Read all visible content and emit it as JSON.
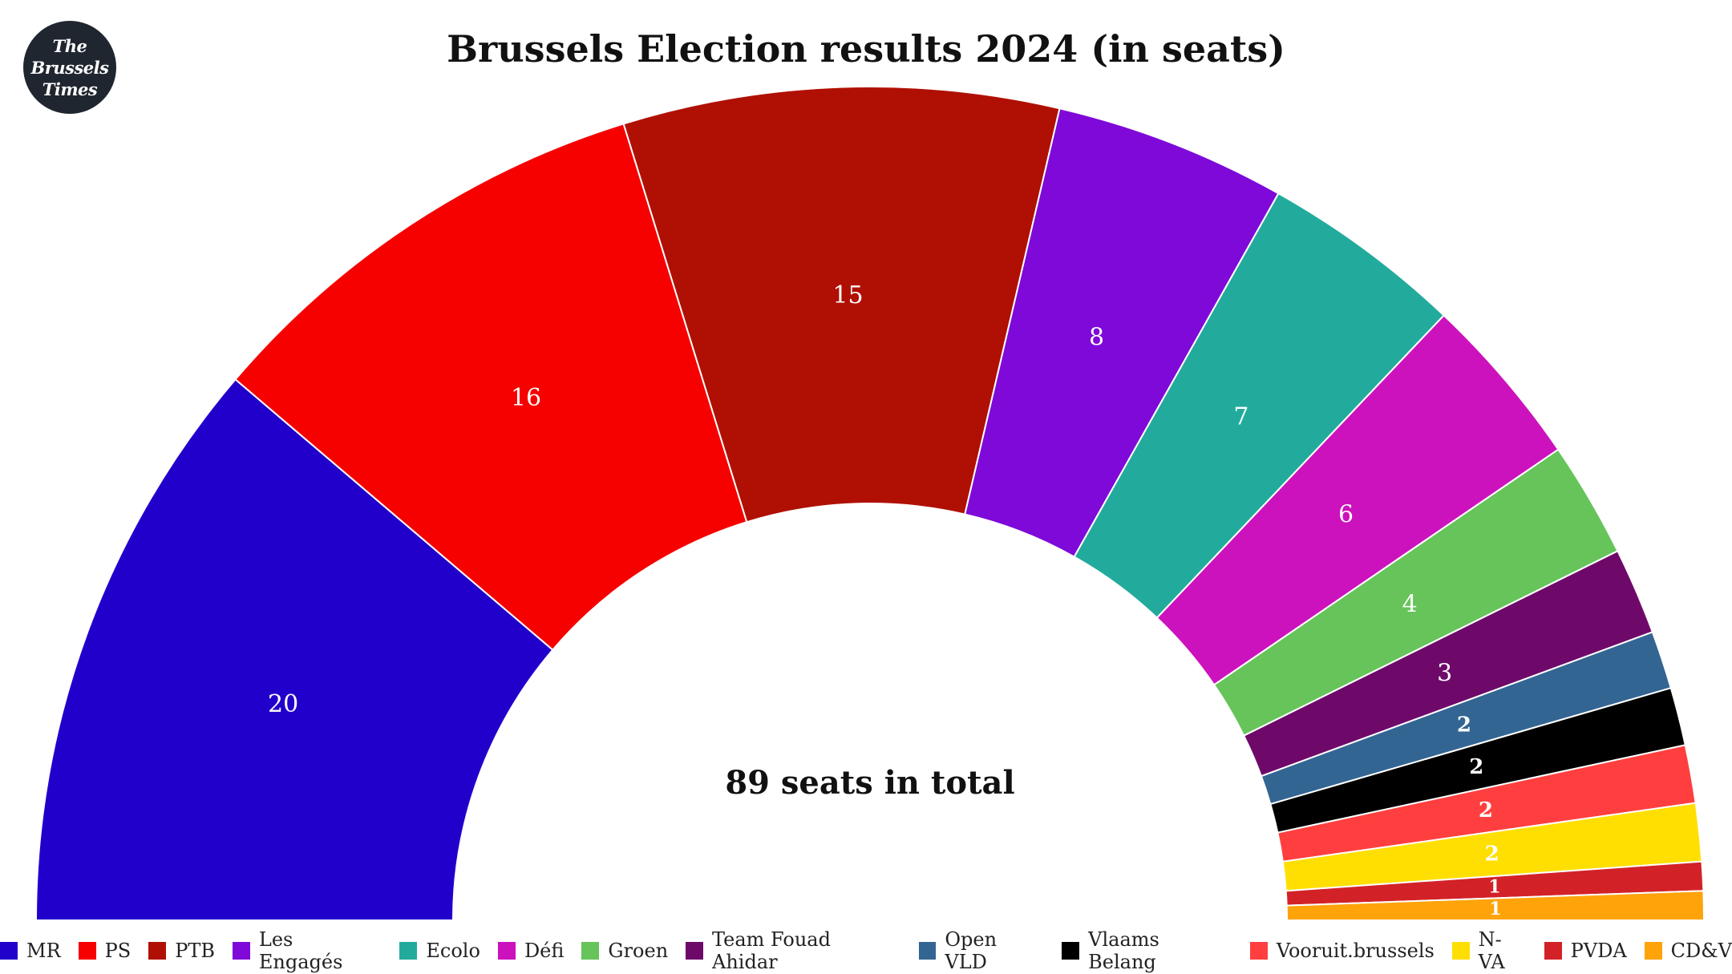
{
  "logo": {
    "line1": "The",
    "line2": "Brussels",
    "line3": "Times"
  },
  "chart_data": {
    "type": "pie",
    "variant": "semicircle",
    "title": "Brussels Election results 2024 (in seats)",
    "center_label": "89 seats in total",
    "legend_position": "bottom",
    "categories": [
      "MR",
      "PS",
      "PTB",
      "Les Engagés",
      "Ecolo",
      "Défi",
      "Groen",
      "Team Fouad Ahidar",
      "Open VLD",
      "Vlaams Belang",
      "Vooruit.brussels",
      "N-VA",
      "PVDA",
      "CD&V"
    ],
    "values": [
      20,
      16,
      15,
      8,
      7,
      6,
      4,
      3,
      2,
      2,
      2,
      2,
      1,
      1
    ],
    "colors": [
      "#2200cc",
      "#f60000",
      "#b01004",
      "#7f09d8",
      "#22ab9c",
      "#cc12bd",
      "#66c45a",
      "#6e096a",
      "#336593",
      "#000000",
      "#ff3f3f",
      "#ffdf02",
      "#d22227",
      "#ffa30b"
    ]
  }
}
